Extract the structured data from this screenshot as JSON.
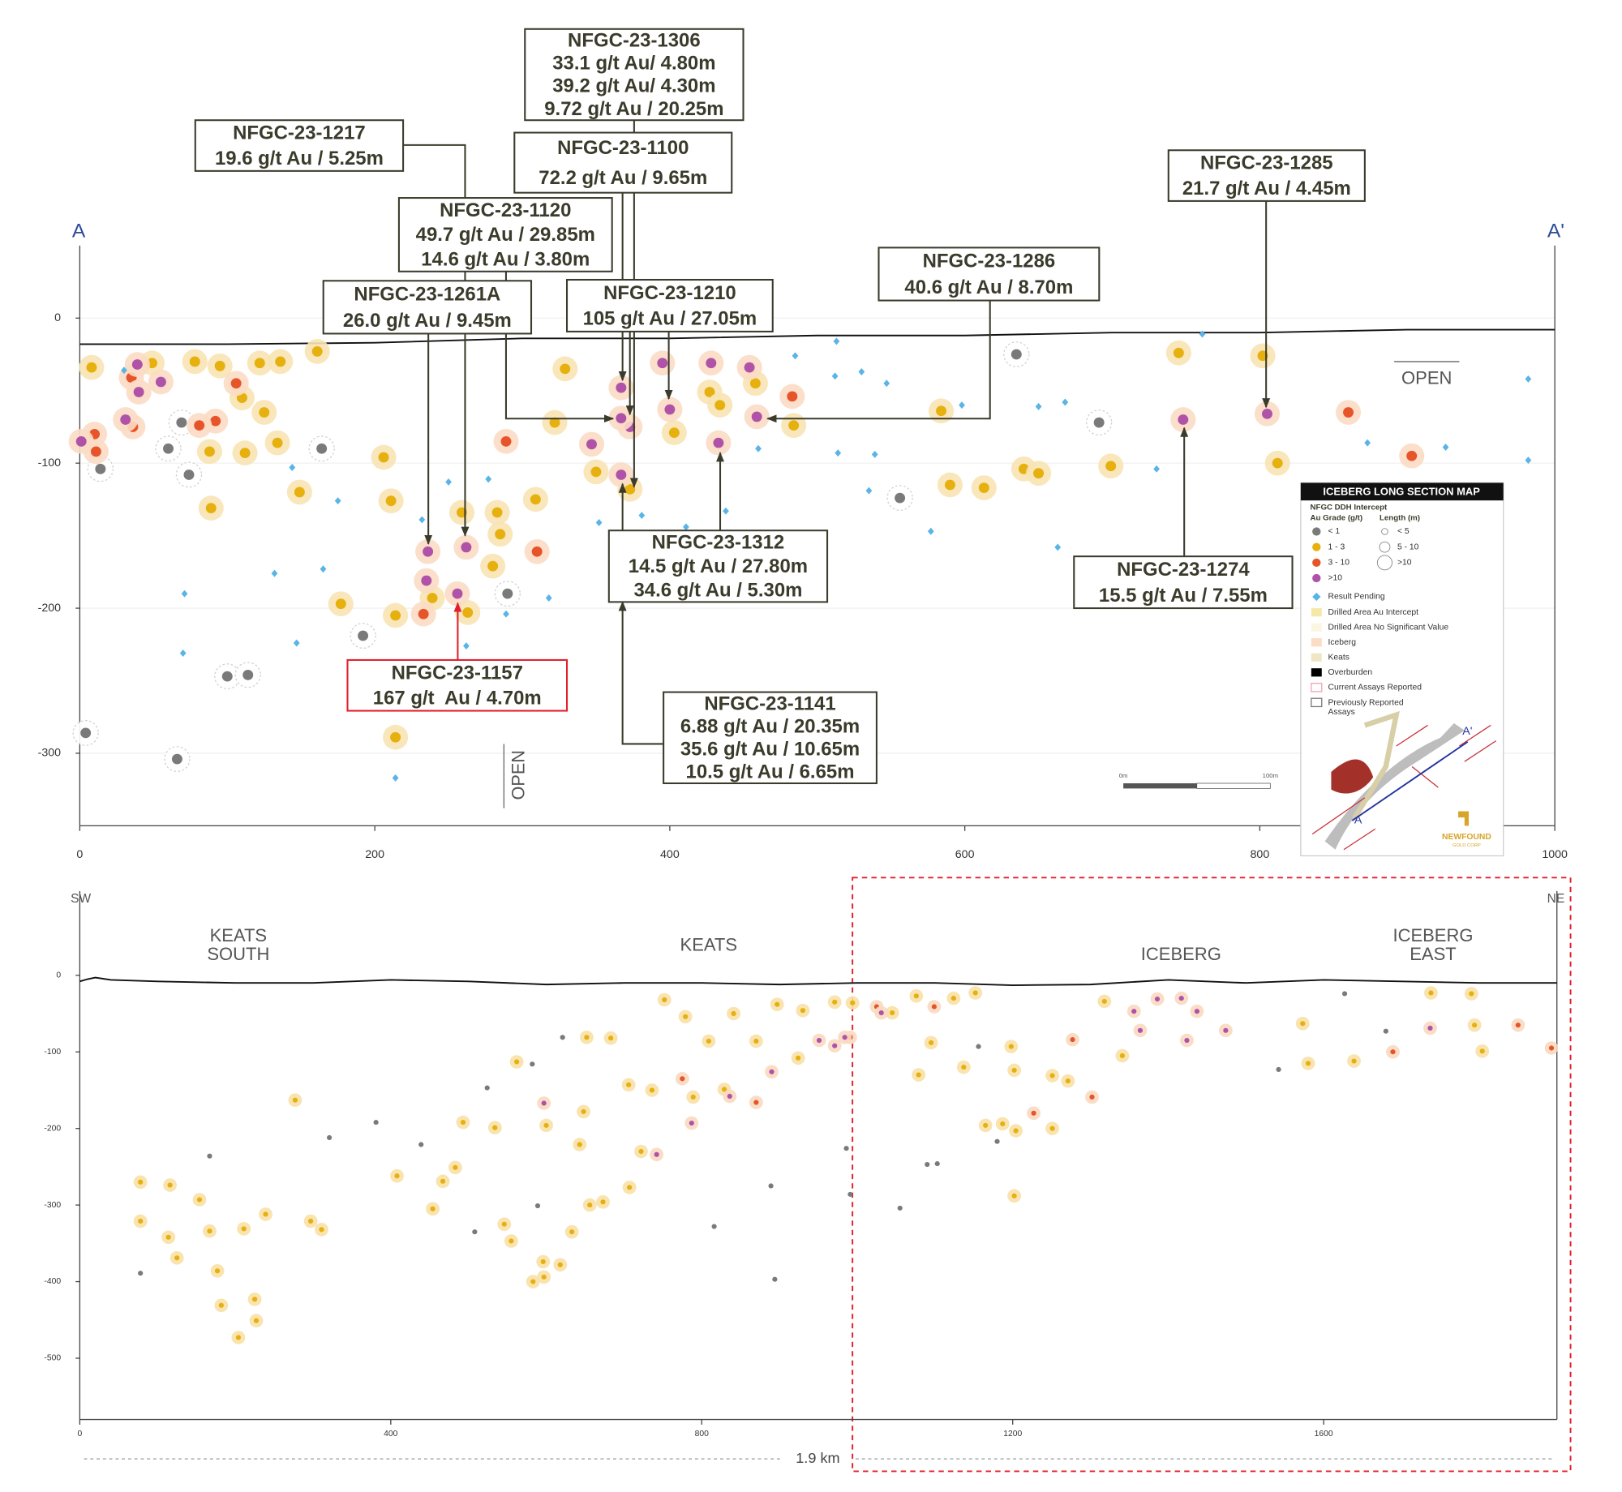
{
  "chart_data": [
    {
      "type": "scatter",
      "xlim": [
        0,
        1000
      ],
      "ylim": [
        -350,
        50
      ],
      "xticks": [
        0,
        200,
        400,
        600,
        800,
        1000
      ],
      "yticks": [
        0,
        -100,
        -200,
        -300
      ],
      "grid": true,
      "labels": {
        "left": "A",
        "right": "A'",
        "open_right": "OPEN",
        "open_bottom": "OPEN",
        "scale_start": "0m",
        "scale_end": "100m"
      },
      "surface": {
        "x": [
          0,
          100,
          200,
          300,
          400,
          500,
          600,
          700,
          800,
          900,
          1000
        ],
        "y": [
          -18,
          -18,
          -17,
          -14,
          -14,
          -12,
          -12,
          -10,
          -10,
          -8,
          -8
        ]
      },
      "series": [
        {
          "name": "< 1",
          "color": "#7a7a7a",
          "halo": "#ffffff",
          "x": [
            60,
            69,
            74,
            14,
            100,
            114,
            66,
            4,
            164,
            192,
            290,
            556,
            635,
            691
          ],
          "y": [
            -90,
            -72,
            -108,
            -104,
            -247,
            -246,
            -304,
            -286,
            -90,
            -219,
            -190,
            -124,
            -25,
            -72
          ]
        },
        {
          "name": "1 - 3",
          "color": "#e6b00e",
          "halo": "#f8e3b4",
          "x": [
            8,
            49,
            78,
            95,
            122,
            136,
            161,
            110,
            125,
            112,
            88,
            89,
            134,
            149,
            206,
            211,
            177,
            214,
            214,
            239,
            259,
            283,
            285,
            280,
            309,
            263,
            329,
            322,
            350,
            373,
            403,
            427,
            434,
            458,
            484,
            584,
            590,
            613,
            640,
            650,
            699,
            745,
            802,
            812
          ],
          "y": [
            -34,
            -31,
            -30,
            -33,
            -31,
            -30,
            -23,
            -55,
            -65,
            -93,
            -92,
            -131,
            -86,
            -120,
            -96,
            -126,
            -197,
            -205,
            -289,
            -193,
            -134,
            -134,
            -149,
            -171,
            -125,
            -203,
            -35,
            -72,
            -106,
            -118,
            -79,
            -51,
            -60,
            -45,
            -74,
            -64,
            -115,
            -117,
            -104,
            -107,
            -102,
            -24,
            -26,
            -100
          ]
        },
        {
          "name": "3 - 10",
          "color": "#e8542a",
          "halo": "#fbdcc4",
          "x": [
            11,
            10,
            35,
            92,
            106,
            81,
            289,
            310,
            233,
            483,
            860,
            903,
            36
          ],
          "y": [
            -92,
            -80,
            -41,
            -71,
            -45,
            -74,
            -85,
            -161,
            -204,
            -54,
            -65,
            -95,
            -75
          ]
        },
        {
          "name": ">10",
          "color": "#b052a8",
          "halo": "#fbdcc4",
          "x": [
            39,
            55,
            40,
            31,
            1,
            367,
            373,
            367,
            367,
            400,
            395,
            428,
            454,
            433,
            459,
            347,
            236,
            262,
            235,
            256,
            748,
            805
          ],
          "y": [
            -32,
            -44,
            -51,
            -70,
            -85,
            -48,
            -75,
            -69,
            -108,
            -63,
            -31,
            -31,
            -34,
            -86,
            -68,
            -87,
            -161,
            -158,
            -181,
            -190,
            -70,
            -66
          ]
        },
        {
          "name": "Result Pending",
          "color": "#5ab4e6",
          "marker": "diamond",
          "x": [
            30,
            144,
            175,
            132,
            165,
            71,
            70,
            147,
            232,
            250,
            277,
            289,
            318,
            262,
            214,
            352,
            381,
            411,
            438,
            460,
            485,
            513,
            512,
            530,
            547,
            514,
            539,
            535,
            577,
            598,
            650,
            668,
            663,
            730,
            761,
            873,
            926,
            982,
            982
          ],
          "y": [
            -36,
            -103,
            -126,
            -176,
            -173,
            -190,
            -231,
            -224,
            -139,
            -113,
            -111,
            -204,
            -193,
            -226,
            -317,
            -141,
            -136,
            -144,
            -133,
            -90,
            -26,
            -16,
            -40,
            -37,
            -45,
            -93,
            -94,
            -119,
            -147,
            -60,
            -61,
            -58,
            -158,
            -104,
            -11,
            -86,
            -89,
            -42,
            -98
          ]
        }
      ],
      "annotations": [
        {
          "lines": [
            "NFGC-23-1306",
            "33.1 g/t Au/ 4.80m",
            "39.2 g/t Au/ 4.30m",
            "9.72 g/t Au / 20.25m"
          ]
        },
        {
          "lines": [
            "NFGC-23-1217",
            "19.6 g/t Au / 5.25m"
          ]
        },
        {
          "lines": [
            "NFGC-23-1100",
            "72.2 g/t Au / 9.65m"
          ]
        },
        {
          "lines": [
            "NFGC-23-1120",
            "49.7 g/t Au / 29.85m",
            "14.6 g/t Au / 3.80m"
          ]
        },
        {
          "lines": [
            "NFGC-23-1261A",
            "26.0 g/t Au / 9.45m"
          ]
        },
        {
          "lines": [
            "NFGC-23-1210",
            "105 g/t Au / 27.05m"
          ]
        },
        {
          "lines": [
            "NFGC-23-1286",
            "40.6 g/t Au / 8.70m"
          ]
        },
        {
          "lines": [
            "NFGC-23-1285",
            "21.7 g/t Au / 4.45m"
          ]
        },
        {
          "lines": [
            "NFGC-23-1312",
            "14.5 g/t Au / 27.80m",
            "34.6 g/t Au / 5.30m"
          ]
        },
        {
          "lines": [
            "NFGC-23-1274",
            "15.5 g/t Au / 7.55m"
          ]
        },
        {
          "lines": [
            "NFGC-23-1157",
            "167 g/t  Au / 4.70m"
          ]
        },
        {
          "lines": [
            "NFGC-23-1141",
            "6.88 g/t Au / 20.35m",
            "35.6 g/t Au / 10.65m",
            "10.5 g/t Au / 6.65m"
          ]
        }
      ],
      "legend": {
        "title": "ICEBERG LONG SECTION MAP",
        "subtitle": "NFGC DDH Intercept",
        "grade_heading": "Au Grade (g/t)",
        "length_heading": "Length (m)",
        "length_classes": [
          "< 5",
          "5 - 10",
          ">10"
        ],
        "items": [
          {
            "label": "Drilled Area Au Intercept",
            "color": "#f6e9a8"
          },
          {
            "label": "Drilled Area No Significant Value",
            "color": "#fbf6e4"
          },
          {
            "label": "Iceberg",
            "color": "#fbdcc4"
          },
          {
            "label": "Keats",
            "color": "#efe6c4"
          },
          {
            "label": "Overburden",
            "color": "#000000"
          },
          {
            "label": "Current Assays Reported",
            "color": "#f4a0a8"
          },
          {
            "label": "Previously Reported Assays",
            "color": "#777777"
          }
        ],
        "map_labels": [
          "A",
          "A'"
        ],
        "logo": [
          "NEWFOUND",
          "GOLD CORP"
        ]
      }
    },
    {
      "type": "scatter",
      "xlim": [
        0,
        1900
      ],
      "ylim": [
        -580,
        110
      ],
      "xticks": [
        0,
        400,
        800,
        1200,
        1600
      ],
      "yticks": [
        0,
        -100,
        -200,
        -300,
        -400,
        -500
      ],
      "labels": {
        "left": "SW",
        "right": "NE",
        "length": "1.9 km"
      },
      "regions": [
        [
          "KEATS",
          "SOUTH"
        ],
        [
          "KEATS"
        ],
        [
          "ICEBERG"
        ],
        [
          "ICEBERG",
          "EAST"
        ]
      ],
      "surface": {
        "x": [
          0,
          10,
          20,
          40,
          100,
          200,
          300,
          400,
          500,
          600,
          700,
          800,
          900,
          1000,
          1100,
          1200,
          1300,
          1400,
          1500,
          1600,
          1700,
          1800,
          1900
        ],
        "y": [
          -8,
          -5,
          -3,
          -6,
          -8,
          -10,
          -10,
          -6,
          -8,
          -12,
          -10,
          -10,
          -12,
          -10,
          -10,
          -13,
          -12,
          -6,
          -10,
          -6,
          -8,
          -10,
          -10
        ]
      },
      "series": [
        {
          "color": "#7a7a7a",
          "x": [
            78,
            167,
            321,
            381,
            439,
            508,
            524,
            582,
            589,
            621,
            816,
            889,
            894,
            986,
            991,
            1055,
            1090,
            1103,
            1156,
            1180,
            1542,
            1627,
            1680
          ],
          "y": [
            -389,
            -236,
            -212,
            -192,
            -221,
            -335,
            -147,
            -116,
            -301,
            -81,
            -328,
            -275,
            -397,
            -226,
            -286,
            -304,
            -247,
            -246,
            -93,
            -217,
            -123,
            -24,
            -73
          ]
        },
        {
          "color": "#e6b00e",
          "halo": "#f8e0a6",
          "x": [
            78,
            116,
            78,
            114,
            125,
            154,
            167,
            177,
            182,
            211,
            225,
            227,
            204,
            239,
            277,
            297,
            311,
            408,
            454,
            467,
            483,
            493,
            534,
            546,
            555,
            562,
            583,
            597,
            596,
            600,
            618,
            633,
            643,
            648,
            656,
            673,
            683,
            652,
            706,
            707,
            722,
            736,
            752,
            779,
            789,
            809,
            829,
            841,
            870,
            897,
            924,
            930,
            971,
            994,
            1045,
            1076,
            1095,
            1124,
            1152,
            1079,
            1137,
            1198,
            1202,
            1187,
            1202,
            1165,
            1204,
            1251,
            1251,
            1271,
            1318,
            1341,
            1573,
            1580,
            1639,
            1738,
            1790,
            1794,
            1804
          ],
          "y": [
            -270,
            -274,
            -321,
            -342,
            -369,
            -293,
            -334,
            -386,
            -431,
            -331,
            -423,
            -451,
            -473,
            -312,
            -163,
            -321,
            -332,
            -262,
            -305,
            -269,
            -251,
            -192,
            -199,
            -325,
            -347,
            -113,
            -400,
            -394,
            -374,
            -196,
            -378,
            -335,
            -221,
            -178,
            -300,
            -296,
            -82,
            -81,
            -143,
            -277,
            -230,
            -150,
            -32,
            -54,
            -159,
            -86,
            -149,
            -50,
            -86,
            -38,
            -108,
            -46,
            -35,
            -36,
            -49,
            -27,
            -88,
            -30,
            -23,
            -130,
            -120,
            -93,
            -124,
            -194,
            -288,
            -196,
            -203,
            -131,
            -200,
            -138,
            -34,
            -105,
            -63,
            -115,
            -112,
            -23,
            -24,
            -65,
            -99
          ]
        },
        {
          "color": "#e8542a",
          "halo": "#f9d9c0",
          "x": [
            775,
            870,
            991,
            1025,
            1277,
            1302,
            1850,
            1893,
            1689,
            1099,
            1227
          ],
          "y": [
            -135,
            -166,
            -81,
            -41,
            -84,
            -159,
            -65,
            -95,
            -100,
            -41,
            -180
          ]
        },
        {
          "color": "#b052a8",
          "halo": "#f9d9c0",
          "x": [
            597,
            742,
            787,
            836,
            890,
            951,
            971,
            984,
            1356,
            1386,
            1417,
            1437,
            1474,
            1424,
            1364,
            1737,
            1031
          ],
          "y": [
            -167,
            -234,
            -193,
            -158,
            -126,
            -85,
            -92,
            -81,
            -47,
            -31,
            -30,
            -47,
            -72,
            -85,
            -72,
            -69,
            -49
          ]
        }
      ]
    }
  ]
}
